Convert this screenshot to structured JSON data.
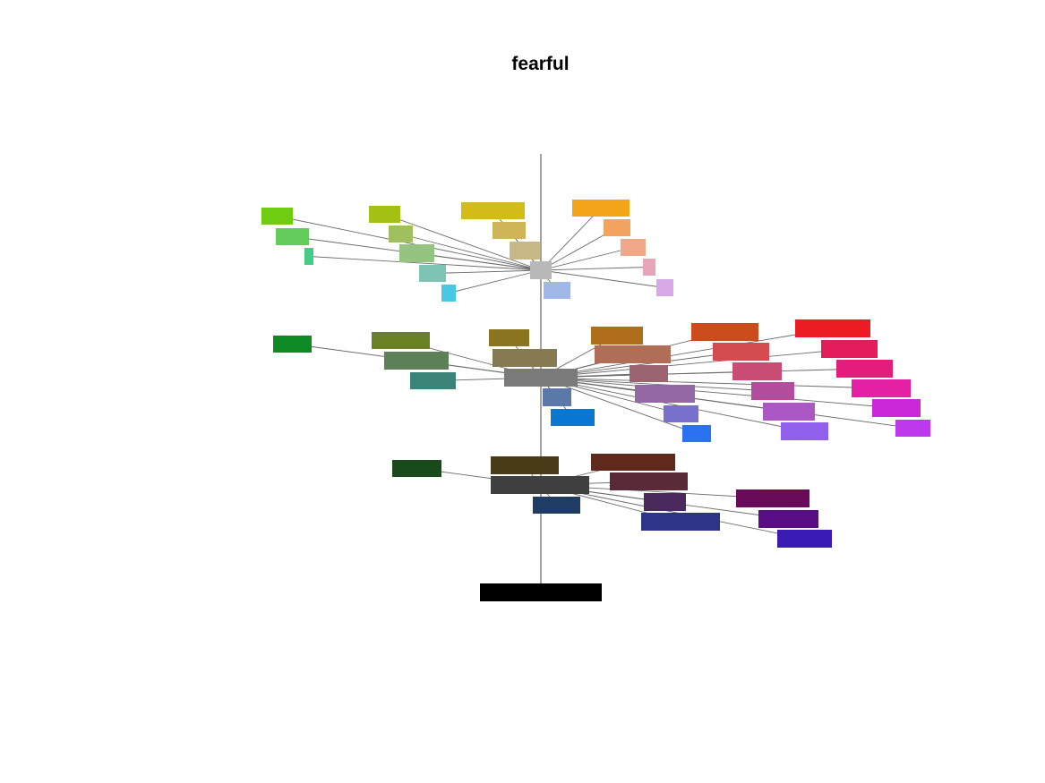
{
  "title": "fearful",
  "diagram": {
    "type": "3d color-term tree",
    "root": {
      "color": "#000000"
    },
    "levels": [
      {
        "hub_color": "#404040",
        "nodes": [
          "#1a4a1c",
          "#4a3b18",
          "#5e2a1c",
          "#5a2a38",
          "#4a2a5c",
          "#6a0a5a",
          "#5a0e86",
          "#3a1cb4",
          "#2e3488",
          "#1e3c64"
        ]
      },
      {
        "hub_color": "#7a7a7a",
        "nodes": [
          "#0f8a24",
          "#6a8024",
          "#5c8058",
          "#3c8478",
          "#8a7420",
          "#867a52",
          "#b06e1c",
          "#cc4c1c",
          "#ec1c24",
          "#b06e58",
          "#d44c50",
          "#e41c5c",
          "#9a6470",
          "#c84c74",
          "#e41c7c",
          "#b44c9c",
          "#e420a4",
          "#9468a4",
          "#ac58c4",
          "#cc28d8",
          "#7870cc",
          "#9060ec",
          "#be38ee",
          "#2a72f0",
          "#0a78d2",
          "#5a78a8"
        ]
      },
      {
        "hub_color": "#b8b8b8",
        "nodes": [
          "#70cc10",
          "#64cc5a",
          "#44cc88",
          "#a4c014",
          "#a0c060",
          "#94c480",
          "#7ec4b4",
          "#48c8e2",
          "#d4bc18",
          "#d0b458",
          "#c8b888",
          "#f4a418",
          "#f0a460",
          "#f0a888",
          "#e8a4b8",
          "#d8a8e8",
          "#a0b8e8"
        ]
      }
    ]
  }
}
